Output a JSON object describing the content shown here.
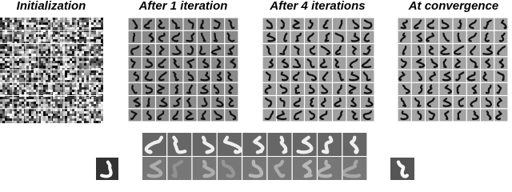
{
  "figure": {
    "panels": [
      {
        "title": "Initialization"
      },
      {
        "title": "After 1 iteration"
      },
      {
        "title": "After 4 iterations"
      },
      {
        "title": "At convergence"
      }
    ]
  }
}
